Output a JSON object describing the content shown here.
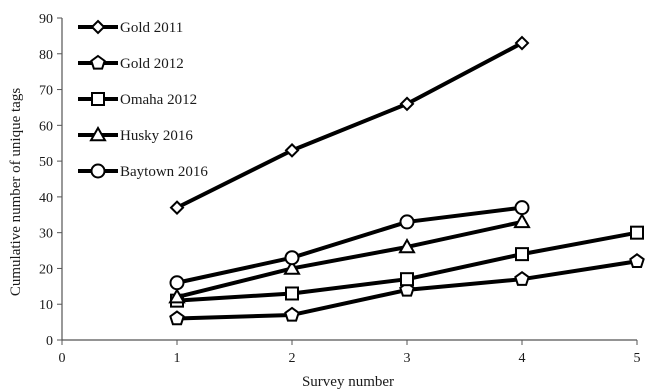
{
  "chart_data": {
    "type": "line",
    "title": "",
    "xlabel": "Survey number",
    "ylabel": "Cumulative number of unique tags",
    "xlim": [
      0,
      5
    ],
    "ylim": [
      0,
      90
    ],
    "xticks": [
      0,
      1,
      2,
      3,
      4,
      5
    ],
    "yticks": [
      0,
      10,
      20,
      30,
      40,
      50,
      60,
      70,
      80,
      90
    ],
    "grid": false,
    "legend_position": "top-left",
    "line_color": "#000000",
    "series": [
      {
        "name": "Gold 2011",
        "marker": "diamond",
        "x": [
          1,
          2,
          3,
          4
        ],
        "y": [
          37,
          53,
          66,
          83
        ]
      },
      {
        "name": "Gold 2012",
        "marker": "pentagon",
        "x": [
          1,
          2,
          3,
          4,
          5
        ],
        "y": [
          6,
          7,
          14,
          17,
          22
        ]
      },
      {
        "name": "Omaha 2012",
        "marker": "square",
        "x": [
          1,
          2,
          3,
          4,
          5
        ],
        "y": [
          11,
          13,
          17,
          24,
          30
        ]
      },
      {
        "name": "Husky 2016",
        "marker": "triangle",
        "x": [
          1,
          2,
          3,
          4
        ],
        "y": [
          12,
          20,
          26,
          33
        ]
      },
      {
        "name": "Baytown 2016",
        "marker": "circle",
        "x": [
          1,
          2,
          3,
          4
        ],
        "y": [
          16,
          23,
          33,
          37
        ]
      }
    ]
  }
}
